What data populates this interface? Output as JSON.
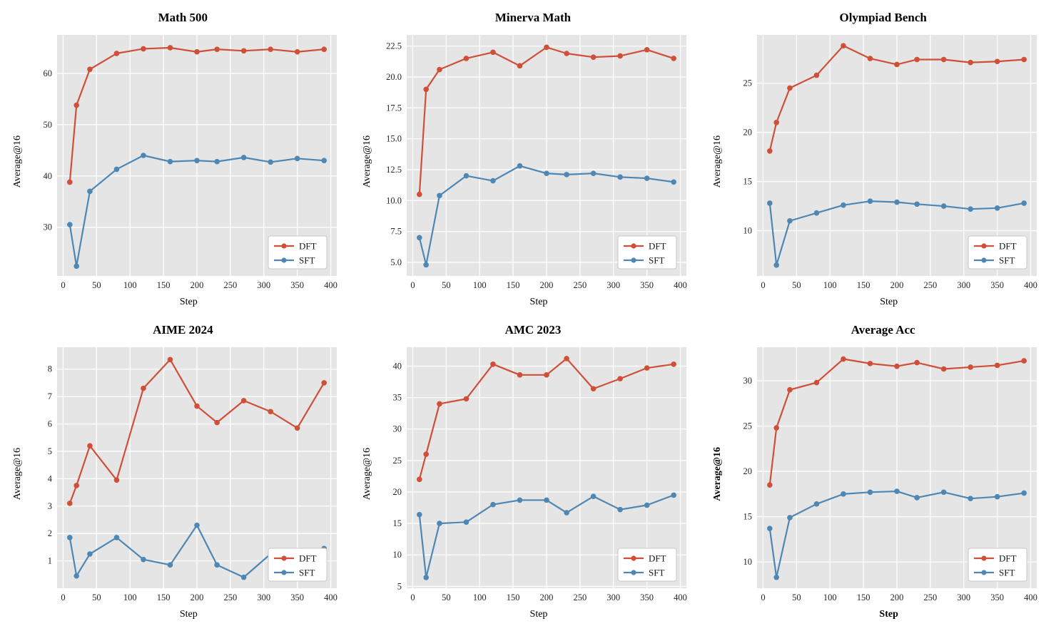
{
  "style": {
    "plot_bg": "#e5e5e5",
    "grid_color": "#ffffff",
    "series_colors": [
      "#cf4f38",
      "#4e87b4"
    ],
    "legend_bg": "#ffffff",
    "legend_border": "#c8c8c8",
    "tick_color": "#262626"
  },
  "chart_data": [
    {
      "type": "line",
      "title": "Math 500",
      "xlabel": "Step",
      "ylabel": "Average@16",
      "x": [
        10,
        20,
        40,
        80,
        120,
        160,
        200,
        230,
        270,
        310,
        350,
        390
      ],
      "series": [
        {
          "name": "DFT",
          "values": [
            38.8,
            53.8,
            60.8,
            63.9,
            64.8,
            65.0,
            64.2,
            64.7,
            64.4,
            64.7,
            64.2,
            64.7
          ]
        },
        {
          "name": "SFT",
          "values": [
            30.5,
            22.4,
            37.0,
            41.3,
            44.0,
            42.8,
            43.0,
            42.8,
            43.6,
            42.7,
            43.4,
            43.0
          ]
        }
      ],
      "xlim": [
        -9,
        409
      ],
      "ylim": [
        20.5,
        67.5
      ],
      "xticks": [
        0,
        50,
        100,
        150,
        200,
        250,
        300,
        350,
        400
      ],
      "yticks": [
        30,
        40,
        50,
        60
      ],
      "ytick_decimals": 0,
      "legend_position": "lower right",
      "grid": true,
      "bold_labels": false
    },
    {
      "type": "line",
      "title": "Minerva Math",
      "xlabel": "Step",
      "ylabel": "Average@16",
      "x": [
        10,
        20,
        40,
        80,
        120,
        160,
        200,
        230,
        270,
        310,
        350,
        390
      ],
      "series": [
        {
          "name": "DFT",
          "values": [
            10.5,
            19.0,
            20.6,
            21.5,
            22.0,
            20.9,
            22.4,
            21.9,
            21.6,
            21.7,
            22.2,
            21.5
          ]
        },
        {
          "name": "SFT",
          "values": [
            7.0,
            4.8,
            10.4,
            12.0,
            11.6,
            12.8,
            12.2,
            12.1,
            12.2,
            11.9,
            11.8,
            11.5
          ]
        }
      ],
      "xlim": [
        -9,
        409
      ],
      "ylim": [
        3.9,
        23.4
      ],
      "xticks": [
        0,
        50,
        100,
        150,
        200,
        250,
        300,
        350,
        400
      ],
      "yticks": [
        5.0,
        7.5,
        10.0,
        12.5,
        15.0,
        17.5,
        20.0,
        22.5
      ],
      "ytick_decimals": 1,
      "legend_position": "lower right",
      "grid": true,
      "bold_labels": false
    },
    {
      "type": "line",
      "title": "Olympiad Bench",
      "xlabel": "Step",
      "ylabel": "Average@16",
      "x": [
        10,
        20,
        40,
        80,
        120,
        160,
        200,
        230,
        270,
        310,
        350,
        390
      ],
      "series": [
        {
          "name": "DFT",
          "values": [
            18.1,
            21.0,
            24.5,
            25.8,
            28.8,
            27.5,
            26.9,
            27.4,
            27.4,
            27.1,
            27.2,
            27.4
          ]
        },
        {
          "name": "SFT",
          "values": [
            12.8,
            6.5,
            11.0,
            11.8,
            12.6,
            13.0,
            12.9,
            12.7,
            12.5,
            12.2,
            12.3,
            12.8
          ]
        }
      ],
      "xlim": [
        -9,
        409
      ],
      "ylim": [
        5.4,
        29.9
      ],
      "xticks": [
        0,
        50,
        100,
        150,
        200,
        250,
        300,
        350,
        400
      ],
      "yticks": [
        10,
        15,
        20,
        25
      ],
      "ytick_decimals": 0,
      "legend_position": "lower right",
      "grid": true,
      "bold_labels": false
    },
    {
      "type": "line",
      "title": "AIME 2024",
      "xlabel": "Step",
      "ylabel": "Average@16",
      "x": [
        10,
        20,
        40,
        80,
        120,
        160,
        200,
        230,
        270,
        310,
        350,
        390
      ],
      "series": [
        {
          "name": "DFT",
          "values": [
            3.1,
            3.75,
            5.2,
            3.95,
            7.3,
            8.35,
            6.65,
            6.05,
            6.85,
            6.45,
            5.85,
            7.5
          ]
        },
        {
          "name": "SFT",
          "values": [
            1.85,
            0.45,
            1.25,
            1.85,
            1.05,
            0.85,
            2.3,
            0.85,
            0.4,
            1.25,
            1.0,
            1.45
          ]
        }
      ],
      "xlim": [
        -9,
        409
      ],
      "ylim": [
        0.0,
        8.8
      ],
      "xticks": [
        0,
        50,
        100,
        150,
        200,
        250,
        300,
        350,
        400
      ],
      "yticks": [
        1,
        2,
        3,
        4,
        5,
        6,
        7,
        8
      ],
      "ytick_decimals": 0,
      "legend_position": "lower right",
      "grid": true,
      "bold_labels": false
    },
    {
      "type": "line",
      "title": "AMC 2023",
      "xlabel": "Step",
      "ylabel": "Average@16",
      "x": [
        10,
        20,
        40,
        80,
        120,
        160,
        200,
        230,
        270,
        310,
        350,
        390
      ],
      "series": [
        {
          "name": "DFT",
          "values": [
            22.0,
            26.0,
            34.0,
            34.8,
            40.3,
            38.6,
            38.6,
            41.2,
            36.4,
            38.0,
            39.7,
            40.3
          ]
        },
        {
          "name": "SFT",
          "values": [
            16.4,
            6.4,
            15.0,
            15.2,
            18.0,
            18.7,
            18.7,
            16.7,
            19.3,
            17.2,
            17.9,
            19.5
          ]
        }
      ],
      "xlim": [
        -9,
        409
      ],
      "ylim": [
        4.7,
        43.0
      ],
      "xticks": [
        0,
        50,
        100,
        150,
        200,
        250,
        300,
        350,
        400
      ],
      "yticks": [
        5,
        10,
        15,
        20,
        25,
        30,
        35,
        40
      ],
      "ytick_decimals": 0,
      "legend_position": "lower right",
      "grid": true,
      "bold_labels": false
    },
    {
      "type": "line",
      "title": "Average Acc",
      "xlabel": "Step",
      "ylabel": "Average@16",
      "x": [
        10,
        20,
        40,
        80,
        120,
        160,
        200,
        230,
        270,
        310,
        350,
        390
      ],
      "series": [
        {
          "name": "DFT",
          "values": [
            18.5,
            24.8,
            29.0,
            29.8,
            32.4,
            31.9,
            31.6,
            32.0,
            31.3,
            31.5,
            31.7,
            32.2
          ]
        },
        {
          "name": "SFT",
          "values": [
            13.7,
            8.3,
            14.9,
            16.4,
            17.5,
            17.7,
            17.8,
            17.1,
            17.7,
            17.0,
            17.2,
            17.6
          ]
        }
      ],
      "xlim": [
        -9,
        409
      ],
      "ylim": [
        7.1,
        33.7
      ],
      "xticks": [
        0,
        50,
        100,
        150,
        200,
        250,
        300,
        350,
        400
      ],
      "yticks": [
        10,
        15,
        20,
        25,
        30
      ],
      "ytick_decimals": 0,
      "legend_position": "lower right",
      "grid": true,
      "bold_labels": true
    }
  ]
}
